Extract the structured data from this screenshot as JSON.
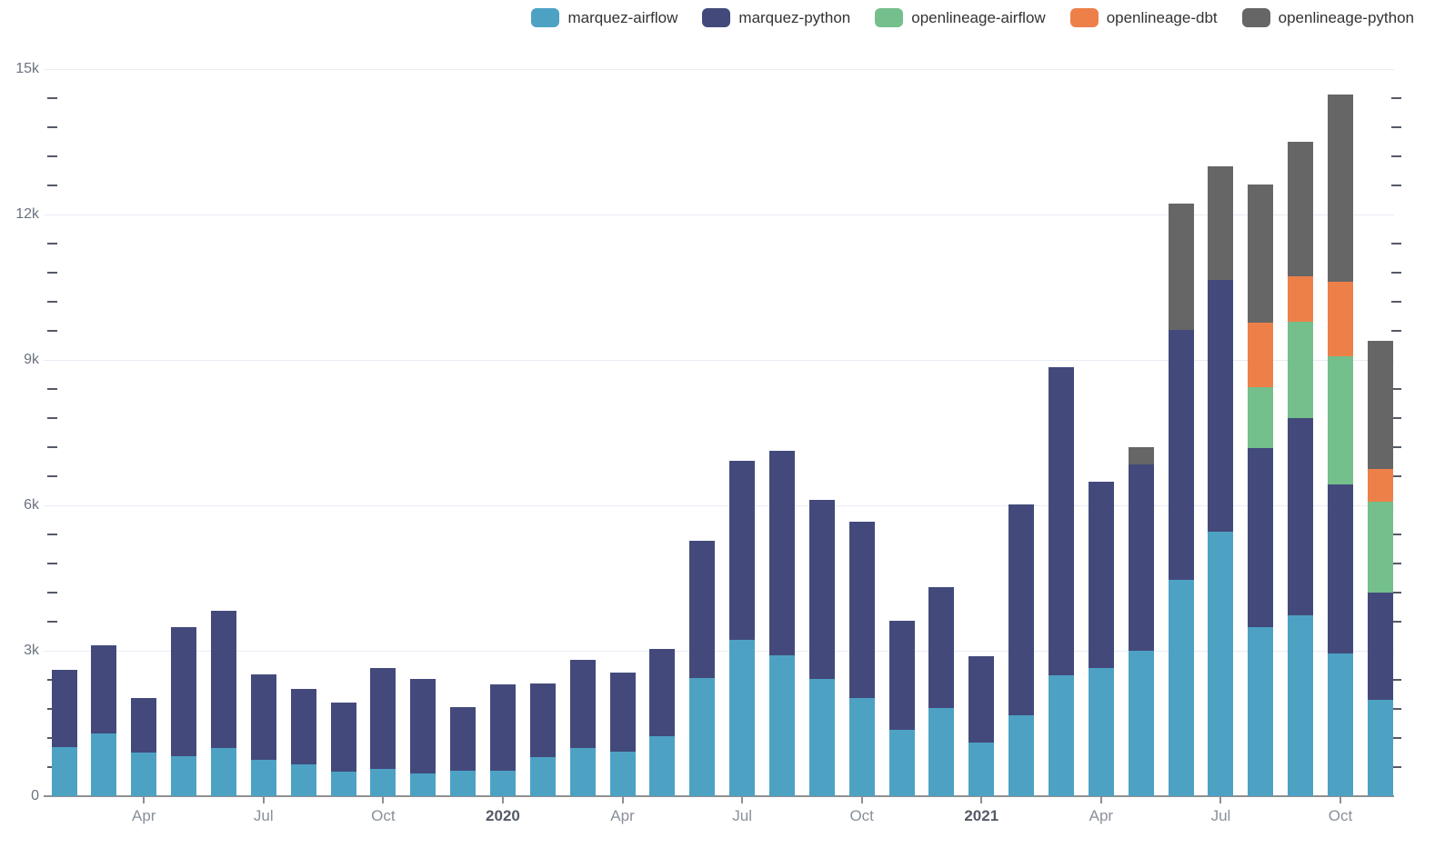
{
  "chart_data": {
    "type": "bar",
    "stacked": true,
    "title": "",
    "x_categories": [
      "2019-02",
      "2019-03",
      "2019-04",
      "2019-05",
      "2019-06",
      "2019-07",
      "2019-08",
      "2019-09",
      "2019-10",
      "2019-11",
      "2019-12",
      "2020-01",
      "2020-02",
      "2020-03",
      "2020-04",
      "2020-05",
      "2020-06",
      "2020-07",
      "2020-08",
      "2020-09",
      "2020-10",
      "2020-11",
      "2020-12",
      "2021-01",
      "2021-02",
      "2021-03",
      "2021-04",
      "2021-05",
      "2021-06",
      "2021-07",
      "2021-08",
      "2021-09",
      "2021-10",
      "2021-11"
    ],
    "series": [
      {
        "name": "marquez-airflow",
        "color": "#4da2c4",
        "values": [
          1020,
          1290,
          905,
          830,
          1000,
          750,
          655,
          515,
          560,
          460,
          520,
          525,
          805,
          990,
          910,
          1230,
          2430,
          3230,
          2900,
          2420,
          2030,
          1360,
          1815,
          1110,
          1675,
          2500,
          2640,
          3000,
          4460,
          5460,
          3480,
          3730,
          2950,
          1980
        ]
      },
      {
        "name": "marquez-python",
        "color": "#434a7b",
        "values": [
          1590,
          1815,
          1125,
          2665,
          2825,
          1770,
          1550,
          1425,
          2080,
          1965,
          1325,
          1775,
          1525,
          1825,
          1640,
          1815,
          2840,
          3690,
          4225,
          3690,
          3640,
          2255,
          2500,
          1785,
          4340,
          6355,
          3840,
          3845,
          5155,
          5195,
          3695,
          4065,
          3490,
          2220
        ]
      },
      {
        "name": "openlineage-airflow",
        "color": "#74bf8c",
        "values": [
          0,
          0,
          0,
          0,
          0,
          0,
          0,
          0,
          0,
          0,
          0,
          0,
          0,
          0,
          0,
          0,
          0,
          0,
          0,
          0,
          0,
          0,
          0,
          0,
          0,
          0,
          0,
          0,
          0,
          0,
          1265,
          1990,
          2640,
          1880
        ]
      },
      {
        "name": "openlineage-dbt",
        "color": "#ed8049",
        "values": [
          0,
          0,
          0,
          0,
          0,
          0,
          0,
          0,
          0,
          0,
          0,
          0,
          0,
          0,
          0,
          0,
          0,
          0,
          0,
          0,
          0,
          0,
          0,
          0,
          0,
          0,
          0,
          0,
          0,
          0,
          1325,
          940,
          1540,
          675
        ]
      },
      {
        "name": "openlineage-python",
        "color": "#666666",
        "values": [
          0,
          0,
          0,
          0,
          0,
          0,
          0,
          0,
          0,
          0,
          0,
          0,
          0,
          0,
          0,
          0,
          0,
          0,
          0,
          0,
          0,
          0,
          0,
          0,
          0,
          0,
          0,
          360,
          2610,
          2345,
          2860,
          2780,
          3860,
          2640
        ]
      }
    ],
    "y_axis": {
      "min": 0,
      "max": 15000,
      "major_step": 3000,
      "minor_step": 600,
      "major_tick_labels": [
        "0",
        "3k",
        "6k",
        "9k",
        "12k",
        "15k"
      ],
      "grid": true
    },
    "x_axis": {
      "ticks": [
        {
          "index": 2,
          "label": "Apr",
          "bold": false
        },
        {
          "index": 5,
          "label": "Jul",
          "bold": false
        },
        {
          "index": 8,
          "label": "Oct",
          "bold": false
        },
        {
          "index": 11,
          "label": "2020",
          "bold": true
        },
        {
          "index": 14,
          "label": "Apr",
          "bold": false
        },
        {
          "index": 17,
          "label": "Jul",
          "bold": false
        },
        {
          "index": 20,
          "label": "Oct",
          "bold": false
        },
        {
          "index": 23,
          "label": "2021",
          "bold": true
        },
        {
          "index": 26,
          "label": "Apr",
          "bold": false
        },
        {
          "index": 29,
          "label": "Jul",
          "bold": false
        },
        {
          "index": 32,
          "label": "Oct",
          "bold": false
        }
      ]
    },
    "legend_position": "top-right"
  }
}
